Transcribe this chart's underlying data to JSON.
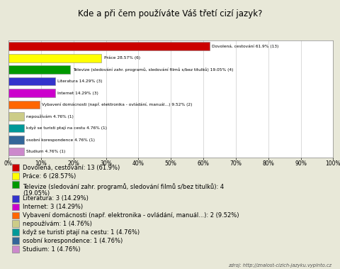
{
  "title": "Kde a při čem používáte Váš třetí cizí jazyk?",
  "bar_labels": [
    "Dovolená, cestování 61.9% (13)",
    "Práce 28.57% (6)",
    "Televize (sledování zahr. programů, sledování filmů s/bez titulků) 19.05% (4)",
    "Literatura 14.29% (3)",
    "Internet 14.29% (3)",
    "Vybavení domácnosti (např. elektronika - ovládání, manuál...) 9.52% (2)",
    "nepoužívám 4.76% (1)",
    "když se turisti ptají na cestu 4.76% (1)",
    "osobní korespondence 4.76% (1)",
    "Studium 4.76% (1)"
  ],
  "values": [
    61.9,
    28.57,
    19.05,
    14.29,
    14.29,
    9.52,
    4.76,
    4.76,
    4.76,
    4.76
  ],
  "bar_colors": [
    "#cc0000",
    "#ffff00",
    "#009900",
    "#3333cc",
    "#cc00cc",
    "#ff6600",
    "#cccc88",
    "#009999",
    "#336699",
    "#cc88cc"
  ],
  "legend_labels": [
    "Dovolená, cestování: 13 (61.9%)",
    "Práce: 6 (28.57%)",
    "Televize (sledování zahr. programů, sledování filmů s/bez titulků): 4\n(19.05%)",
    "Literatura: 3 (14.29%)",
    "Internet: 3 (14.29%)",
    "Vybavení domácnosti (např. elektronika - ovládání, manuál...): 2 (9.52%)",
    "nepoužívám: 1 (4.76%)",
    "když se turisti ptají na cestu: 1 (4.76%)",
    "osobní korespondence: 1 (4.76%)",
    "Studium: 1 (4.76%)"
  ],
  "legend_colors": [
    "#cc0000",
    "#ffff00",
    "#009900",
    "#3333cc",
    "#cc00cc",
    "#ff6600",
    "#cccc88",
    "#009999",
    "#336699",
    "#cc88cc"
  ],
  "source": "zdroj: http://znalost-cizich-jazyku.vyplnto.cz",
  "bg_color": "#e8e8d8",
  "chart_bg": "#ffffff",
  "border_color": "#888888"
}
